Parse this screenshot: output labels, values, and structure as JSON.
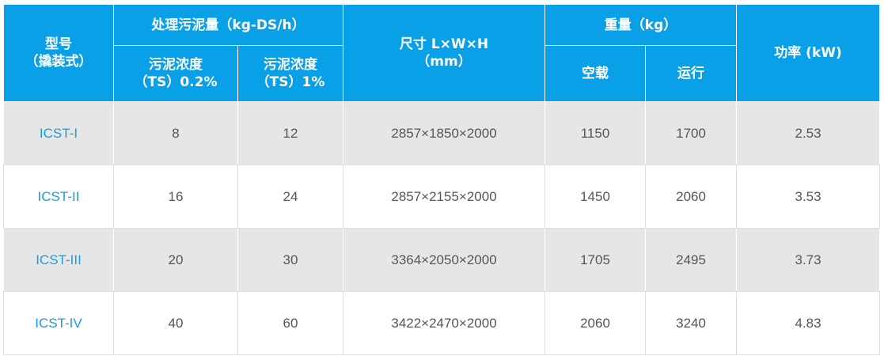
{
  "header": {
    "model": [
      "型号",
      "（撬装式）"
    ],
    "capacity": "处理污泥量（kg-DS/h）",
    "conc1": [
      "污泥浓度",
      "（TS）0.2%"
    ],
    "conc2": [
      "污泥浓度",
      "（TS）1%"
    ],
    "size": [
      "尺寸 L×W×H",
      "（mm）"
    ],
    "weight": "重量（kg）",
    "empty": "空载",
    "running": "运行",
    "power": "功率 (kW)"
  },
  "rows": [
    [
      "ICST-I",
      "8",
      "12",
      "2857×1850×2000",
      "1150",
      "1700",
      "2.53"
    ],
    [
      "ICST-II",
      "16",
      "24",
      "2857×2155×2000",
      "1450",
      "2060",
      "3.53"
    ],
    [
      "ICST-III",
      "20",
      "30",
      "3364×2050×2000",
      "1705",
      "2495",
      "3.73"
    ],
    [
      "ICST-IV",
      "40",
      "60",
      "3422×2470×2000",
      "2060",
      "3240",
      "4.83"
    ]
  ],
  "colors": {
    "header_bg": "#0aa0e8",
    "model_text": "#1a9be0",
    "stripe": "#e6e6e6"
  }
}
